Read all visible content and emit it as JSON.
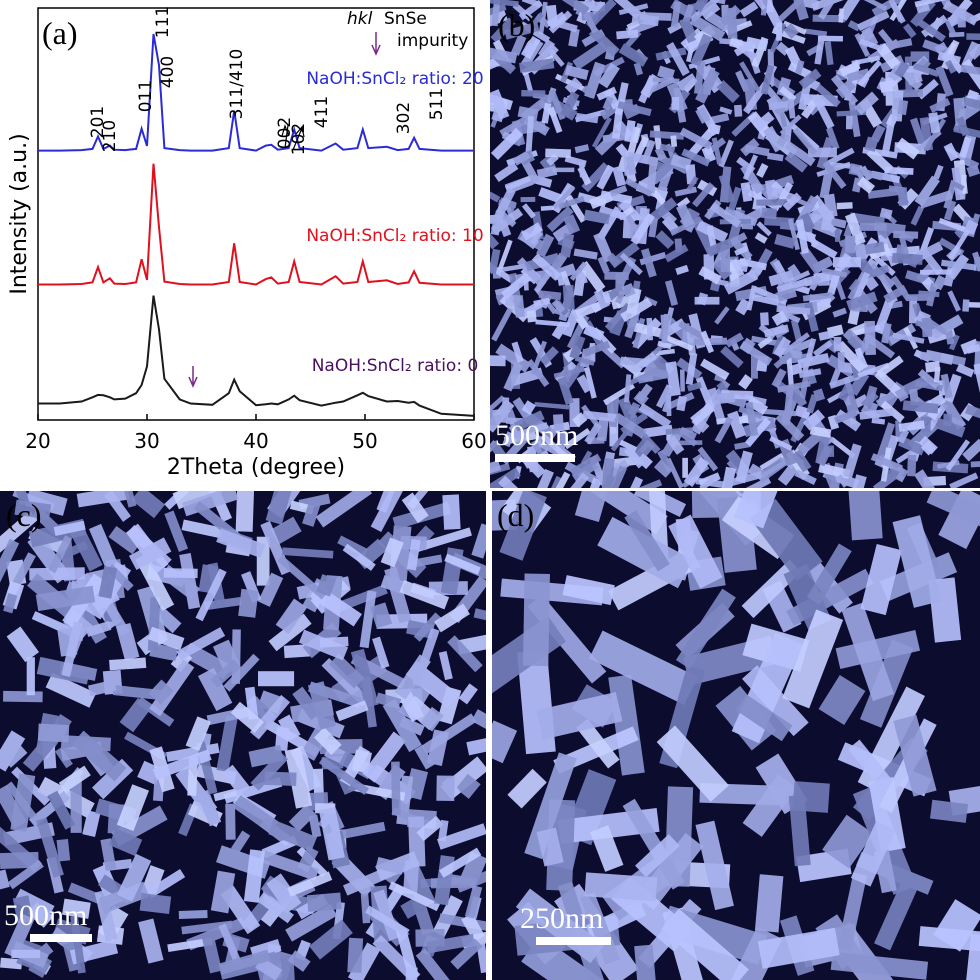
{
  "chart_data": {
    "type": "line",
    "panel_label": "(a)",
    "xlabel": "2Theta (degree)",
    "ylabel": "Intensity (a.u.)",
    "xlim": [
      20,
      60
    ],
    "xticks": [
      20,
      30,
      40,
      50,
      60
    ],
    "ylim": [
      0,
      100
    ],
    "x": [
      20,
      22,
      24,
      25,
      25.5,
      26,
      26.6,
      27,
      28,
      29,
      29.5,
      30,
      30.6,
      31.1,
      31.6,
      33,
      34,
      36,
      37.5,
      38,
      38.5,
      40,
      40.9,
      41.4,
      42,
      43,
      43.5,
      44,
      46,
      47.3,
      48,
      49.3,
      49.8,
      50.3,
      52,
      53,
      54,
      54.5,
      55,
      57,
      60
    ],
    "series": [
      {
        "name": "NaOH:SnCl₂ ratio: 20",
        "color": "#2b2bd6",
        "values": [
          65.4,
          65.4,
          65.5,
          65.8,
          68.8,
          65.8,
          66.6,
          65.6,
          65.5,
          65.8,
          70.7,
          66.5,
          93.7,
          86.1,
          66.0,
          65.5,
          65.4,
          65.4,
          66.0,
          75.1,
          66.0,
          65.4,
          66.6,
          66.8,
          65.6,
          66.0,
          70.5,
          66.0,
          65.4,
          67.1,
          65.6,
          66.0,
          70.5,
          66.0,
          66.3,
          65.5,
          65.8,
          68.5,
          65.8,
          65.4,
          65.4
        ]
      },
      {
        "name": "NaOH:SnCl₂ ratio: 10",
        "color": "#e0101c",
        "values": [
          32.9,
          32.9,
          33.0,
          33.4,
          37.1,
          33.4,
          34.4,
          33.1,
          33.0,
          33.4,
          39.0,
          34.0,
          62.2,
          46.8,
          33.6,
          33.0,
          32.9,
          32.9,
          33.5,
          42.9,
          33.5,
          32.9,
          34.2,
          34.6,
          33.1,
          33.5,
          38.5,
          33.5,
          32.9,
          34.9,
          33.1,
          33.5,
          38.5,
          33.5,
          33.9,
          33.0,
          33.4,
          36.1,
          33.3,
          32.9,
          32.9
        ]
      },
      {
        "name": "NaOH:SnCl₂ ratio: 0",
        "color": "#1a1a1a",
        "values": [
          4.0,
          4.0,
          4.5,
          5.5,
          6.1,
          6.0,
          5.5,
          5.0,
          5.2,
          6.5,
          8.5,
          13.0,
          30.2,
          22.0,
          10.0,
          5.0,
          4.0,
          3.7,
          6.5,
          9.8,
          7.0,
          3.6,
          3.8,
          4.0,
          3.8,
          5.0,
          5.9,
          4.8,
          3.5,
          4.2,
          4.5,
          6.0,
          6.6,
          5.8,
          4.5,
          4.6,
          4.2,
          4.4,
          3.5,
          1.5,
          1.0
        ]
      }
    ],
    "annotations": [
      "201",
      "210",
      "011",
      "400",
      "111",
      "311/410",
      "002",
      "102",
      "411",
      "302",
      "511"
    ],
    "legend_hkl": "hkl",
    "legend_phase": "SnSe",
    "legend_impurity": "impurity"
  },
  "panels": [
    {
      "label": "(b)",
      "scale": "500nm"
    },
    {
      "label": "(c)",
      "scale": "500nm"
    },
    {
      "label": "(d)",
      "scale": "250nm"
    }
  ]
}
